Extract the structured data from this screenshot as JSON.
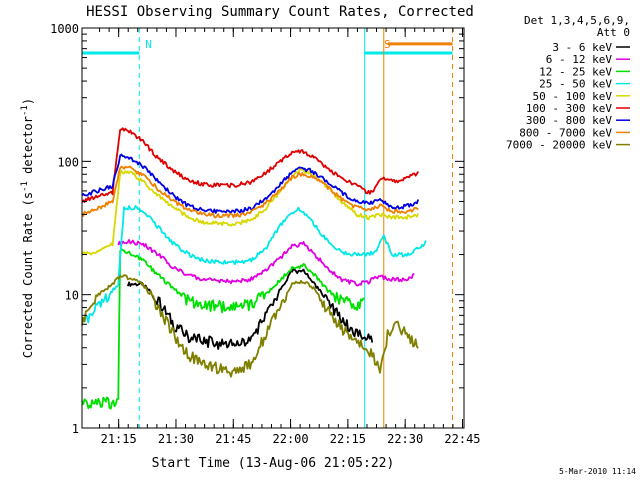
{
  "chart_data": {
    "type": "line",
    "title": "HESSI Observing Summary Count Rates, Corrected",
    "xlabel": "Start Time (13-Aug-06 21:05:22)",
    "ylabel": "Corrected Count Rate (s⁻¹ detector⁻¹)",
    "ylabel_text": "Corrected Count Rate (s",
    "ylabel_sup1": "-1",
    "ylabel_mid": " detector",
    "ylabel_sup2": "-1",
    "ylabel_end": ")",
    "x_unit": "minutes since 21:05:22",
    "xlim": [
      0,
      100
    ],
    "y_scale": "log",
    "ylim": [
      1,
      1000
    ],
    "x_ticks": [
      {
        "label": "21:15",
        "value": 9.6
      },
      {
        "label": "21:30",
        "value": 24.6
      },
      {
        "label": "21:45",
        "value": 39.6
      },
      {
        "label": "22:00",
        "value": 54.6
      },
      {
        "label": "22:15",
        "value": 69.6
      },
      {
        "label": "22:30",
        "value": 84.6
      },
      {
        "label": "22:45",
        "value": 99.6
      }
    ],
    "y_ticks": [
      {
        "label": "1",
        "value": 1
      },
      {
        "label": "10",
        "value": 10
      },
      {
        "label": "100",
        "value": 100
      },
      {
        "label": "1000",
        "value": 1000
      }
    ],
    "legend_header": [
      "Det 1,3,4,5,6,9,",
      "Att 0"
    ],
    "legend_position": "right",
    "series": [
      {
        "name": "3 - 6 keV",
        "color": "#000000",
        "points": [
          [
            12,
            12
          ],
          [
            16,
            12
          ],
          [
            20,
            9
          ],
          [
            24,
            6
          ],
          [
            28,
            4.8
          ],
          [
            32,
            4.5
          ],
          [
            36,
            4.3
          ],
          [
            40,
            4.2
          ],
          [
            44,
            4.5
          ],
          [
            48,
            7
          ],
          [
            52,
            11
          ],
          [
            55,
            15
          ],
          [
            58,
            15
          ],
          [
            61,
            12
          ],
          [
            64,
            9
          ],
          [
            68,
            6.5
          ],
          [
            72,
            5
          ],
          [
            76,
            4.5
          ]
        ]
      },
      {
        "name": "6 - 12 keV",
        "color": "#e000e0",
        "points": [
          [
            9.5,
            24
          ],
          [
            12,
            25
          ],
          [
            16,
            24
          ],
          [
            20,
            20
          ],
          [
            24,
            16
          ],
          [
            28,
            14
          ],
          [
            32,
            13
          ],
          [
            36,
            12.8
          ],
          [
            40,
            12.5
          ],
          [
            44,
            13
          ],
          [
            48,
            15
          ],
          [
            52,
            19
          ],
          [
            55,
            23
          ],
          [
            58,
            24
          ],
          [
            61,
            20
          ],
          [
            64,
            16
          ],
          [
            68,
            13
          ],
          [
            72,
            12
          ],
          [
            75,
            12.5
          ],
          [
            78,
            14
          ],
          [
            80,
            13
          ],
          [
            85,
            13
          ],
          [
            87,
            14
          ]
        ]
      },
      {
        "name": "12 - 25 keV",
        "color": "#00e000",
        "points": [
          [
            0,
            1.55
          ],
          [
            9.5,
            1.55
          ],
          [
            10,
            22
          ],
          [
            13,
            20
          ],
          [
            16,
            18
          ],
          [
            20,
            14
          ],
          [
            24,
            11
          ],
          [
            28,
            9
          ],
          [
            32,
            8.4
          ],
          [
            36,
            8.2
          ],
          [
            40,
            8
          ],
          [
            44,
            8.5
          ],
          [
            48,
            10
          ],
          [
            52,
            13
          ],
          [
            55,
            16
          ],
          [
            58,
            16.5
          ],
          [
            61,
            14
          ],
          [
            64,
            11
          ],
          [
            68,
            9
          ],
          [
            72,
            8.5
          ],
          [
            74,
            9
          ]
        ]
      },
      {
        "name": "25 - 50 keV",
        "color": "#00e8e8",
        "points": [
          [
            0,
            6
          ],
          [
            9.5,
            12
          ],
          [
            11,
            45
          ],
          [
            14,
            45
          ],
          [
            17,
            40
          ],
          [
            20,
            32
          ],
          [
            24,
            24
          ],
          [
            28,
            20
          ],
          [
            32,
            18
          ],
          [
            36,
            17.5
          ],
          [
            40,
            17.5
          ],
          [
            44,
            18
          ],
          [
            48,
            22
          ],
          [
            51,
            30
          ],
          [
            54,
            40
          ],
          [
            57,
            44
          ],
          [
            60,
            36
          ],
          [
            63,
            28
          ],
          [
            66,
            22
          ],
          [
            70,
            20
          ],
          [
            74,
            20
          ],
          [
            77,
            21
          ],
          [
            79,
            28
          ],
          [
            81,
            20
          ],
          [
            85,
            20
          ],
          [
            88,
            22
          ],
          [
            90,
            25
          ]
        ]
      },
      {
        "name": "50 - 100 keV",
        "color": "#d8d800",
        "points": [
          [
            0,
            20
          ],
          [
            4,
            21
          ],
          [
            8,
            24
          ],
          [
            10,
            84
          ],
          [
            13,
            82
          ],
          [
            16,
            70
          ],
          [
            20,
            55
          ],
          [
            24,
            45
          ],
          [
            28,
            38
          ],
          [
            32,
            35
          ],
          [
            36,
            34
          ],
          [
            40,
            34
          ],
          [
            44,
            36
          ],
          [
            48,
            44
          ],
          [
            52,
            60
          ],
          [
            55,
            77
          ],
          [
            57,
            85
          ],
          [
            60,
            80
          ],
          [
            64,
            65
          ],
          [
            68,
            50
          ],
          [
            72,
            40
          ],
          [
            75,
            38
          ],
          [
            78,
            40
          ],
          [
            81,
            38
          ],
          [
            85,
            38
          ],
          [
            88,
            40
          ]
        ]
      },
      {
        "name": "100 - 300 keV",
        "color": "#e00000",
        "points": [
          [
            0,
            50
          ],
          [
            4,
            55
          ],
          [
            8,
            58
          ],
          [
            10,
            178
          ],
          [
            13,
            165
          ],
          [
            16,
            140
          ],
          [
            20,
            105
          ],
          [
            24,
            85
          ],
          [
            28,
            72
          ],
          [
            32,
            67
          ],
          [
            36,
            66
          ],
          [
            40,
            66
          ],
          [
            44,
            70
          ],
          [
            48,
            82
          ],
          [
            52,
            100
          ],
          [
            55,
            118
          ],
          [
            57,
            120
          ],
          [
            60,
            110
          ],
          [
            64,
            90
          ],
          [
            68,
            75
          ],
          [
            72,
            65
          ],
          [
            74,
            60
          ],
          [
            76,
            58
          ],
          [
            78,
            75
          ],
          [
            80,
            72
          ],
          [
            83,
            70
          ],
          [
            86,
            78
          ],
          [
            88,
            82
          ]
        ]
      },
      {
        "name": "300 - 800 keV",
        "color": "#0000e0",
        "points": [
          [
            0,
            55
          ],
          [
            4,
            60
          ],
          [
            8,
            65
          ],
          [
            10,
            110
          ],
          [
            13,
            103
          ],
          [
            16,
            92
          ],
          [
            20,
            70
          ],
          [
            24,
            55
          ],
          [
            28,
            46
          ],
          [
            32,
            43
          ],
          [
            36,
            42
          ],
          [
            40,
            42
          ],
          [
            44,
            44
          ],
          [
            48,
            52
          ],
          [
            52,
            68
          ],
          [
            55,
            82
          ],
          [
            57,
            88
          ],
          [
            60,
            85
          ],
          [
            64,
            72
          ],
          [
            68,
            58
          ],
          [
            72,
            50
          ],
          [
            75,
            48
          ],
          [
            78,
            52
          ],
          [
            81,
            45
          ],
          [
            85,
            46
          ],
          [
            88,
            50
          ]
        ]
      },
      {
        "name": "800 - 7000 keV",
        "color": "#f08000",
        "points": [
          [
            0,
            40
          ],
          [
            4,
            44
          ],
          [
            8,
            50
          ],
          [
            10,
            92
          ],
          [
            13,
            88
          ],
          [
            16,
            78
          ],
          [
            20,
            62
          ],
          [
            24,
            50
          ],
          [
            28,
            43
          ],
          [
            32,
            40
          ],
          [
            36,
            39
          ],
          [
            40,
            39
          ],
          [
            44,
            41
          ],
          [
            48,
            48
          ],
          [
            52,
            62
          ],
          [
            55,
            76
          ],
          [
            57,
            80
          ],
          [
            60,
            78
          ],
          [
            64,
            65
          ],
          [
            68,
            52
          ],
          [
            72,
            45
          ],
          [
            75,
            43
          ],
          [
            78,
            47
          ],
          [
            81,
            42
          ],
          [
            85,
            42
          ],
          [
            88,
            45
          ]
        ]
      },
      {
        "name": "7000 - 20000 keV",
        "color": "#808000",
        "points": [
          [
            0,
            6
          ],
          [
            4,
            10
          ],
          [
            8,
            12
          ],
          [
            10,
            14
          ],
          [
            13,
            13
          ],
          [
            16,
            12
          ],
          [
            20,
            8
          ],
          [
            24,
            5
          ],
          [
            28,
            3.5
          ],
          [
            32,
            3
          ],
          [
            36,
            2.8
          ],
          [
            40,
            2.6
          ],
          [
            44,
            3
          ],
          [
            48,
            5
          ],
          [
            52,
            8.5
          ],
          [
            55,
            12
          ],
          [
            58,
            12.5
          ],
          [
            61,
            11
          ],
          [
            64,
            8
          ],
          [
            68,
            5.5
          ],
          [
            72,
            4.5
          ],
          [
            76,
            3.5
          ],
          [
            78,
            2.7
          ],
          [
            80,
            5
          ],
          [
            82,
            6
          ],
          [
            85,
            5
          ],
          [
            88,
            4
          ]
        ]
      }
    ],
    "annotations": [
      {
        "label": "N",
        "color": "#00e8e8",
        "x": 15
      },
      {
        "label": "S",
        "color": "#f08000",
        "x": 77.5
      }
    ],
    "vertical_lines": [
      {
        "x": 15,
        "color": "#00e8e8",
        "style": "dashed"
      },
      {
        "x": 74,
        "color": "#00e8e8",
        "style": "solid"
      },
      {
        "x": 79,
        "color": "#f08000",
        "style": "solid"
      },
      {
        "x": 97,
        "color": "#f08000",
        "style": "dashed"
      }
    ],
    "flag_bars": [
      {
        "name": "N flag",
        "color": "#00e8e8",
        "x_start": 0,
        "x_end": 15,
        "y": 650
      },
      {
        "name": "S flag cyan",
        "color": "#00e8e8",
        "x_start": 74,
        "x_end": 97,
        "y": 650
      },
      {
        "name": "S flag orange",
        "color": "#f08000",
        "x_start": 80,
        "x_end": 97,
        "y": 760
      }
    ]
  },
  "footer_stamp": "5-Mar-2010 11:14"
}
